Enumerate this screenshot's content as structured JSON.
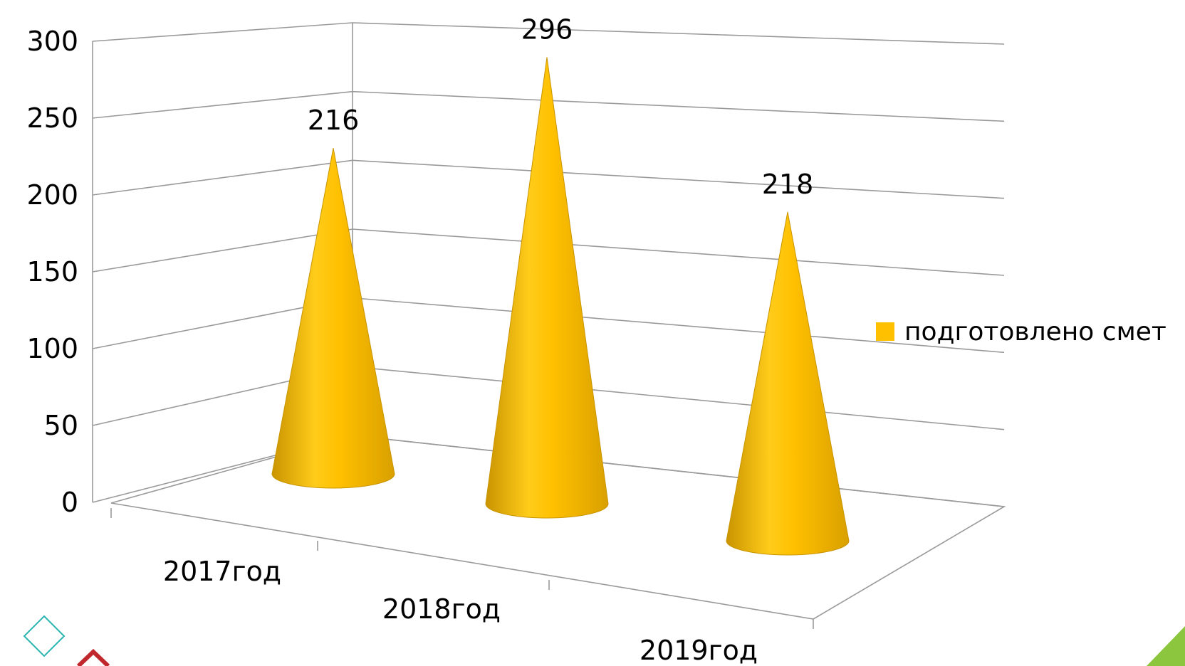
{
  "chart_data": {
    "type": "bar",
    "bar_shape": "cone-3d",
    "categories": [
      "2017год",
      "2018год",
      "2019год"
    ],
    "series": [
      {
        "name": "подготовлено смет",
        "values": [
          216,
          296,
          218
        ],
        "color": "#FFC000"
      }
    ],
    "ylim": [
      0,
      300
    ],
    "yticks": [
      0,
      50,
      100,
      150,
      200,
      250,
      300
    ],
    "grid": true,
    "legend_position": "right",
    "data_labels": true
  },
  "decorations": {
    "accent_teal": "#2BB5B0",
    "accent_red": "#C0282D",
    "accent_green": "#8CC63F"
  }
}
